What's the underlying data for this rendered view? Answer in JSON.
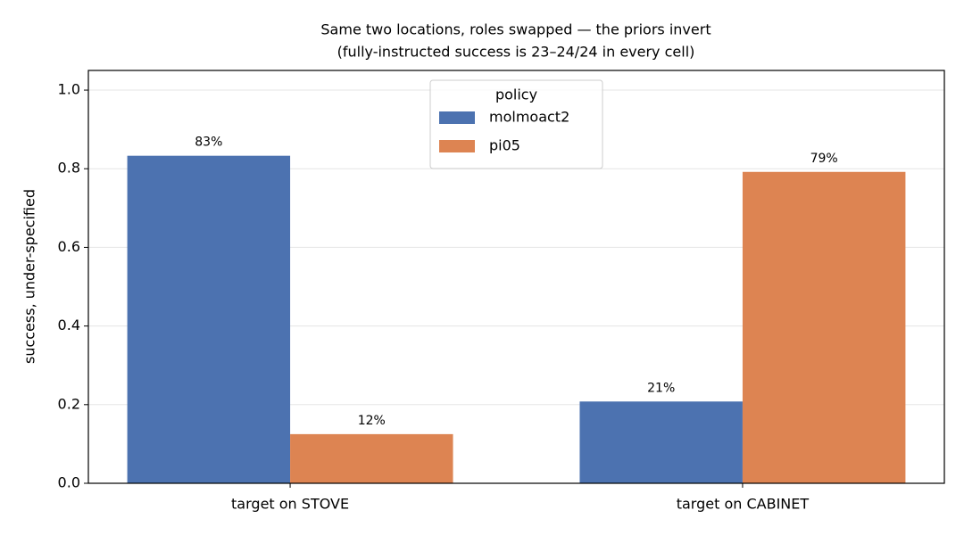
{
  "chart_data": {
    "type": "bar",
    "title": "Same two locations, roles swapped — the priors invert",
    "subtitle": "(fully-instructed success is 23–24/24 in every cell)",
    "ylabel": "success, under-specified",
    "categories": [
      "target on STOVE",
      "target on CABINET"
    ],
    "series": [
      {
        "name": "molmoact2",
        "color": "#4c72b0",
        "values": [
          0.833,
          0.208
        ],
        "value_labels": [
          "83%",
          "21%"
        ]
      },
      {
        "name": "pi05",
        "color": "#dd8452",
        "values": [
          0.125,
          0.792
        ],
        "value_labels": [
          "12%",
          "79%"
        ]
      }
    ],
    "ylim": [
      0,
      1.05
    ],
    "yticks": [
      {
        "value": 0,
        "label": "0.0"
      },
      0.2,
      0.4,
      0.6,
      0.8,
      {
        "value": 1,
        "label": "1.0"
      }
    ],
    "grid": true,
    "legend_title": "policy",
    "legend_loc": "upper center"
  }
}
